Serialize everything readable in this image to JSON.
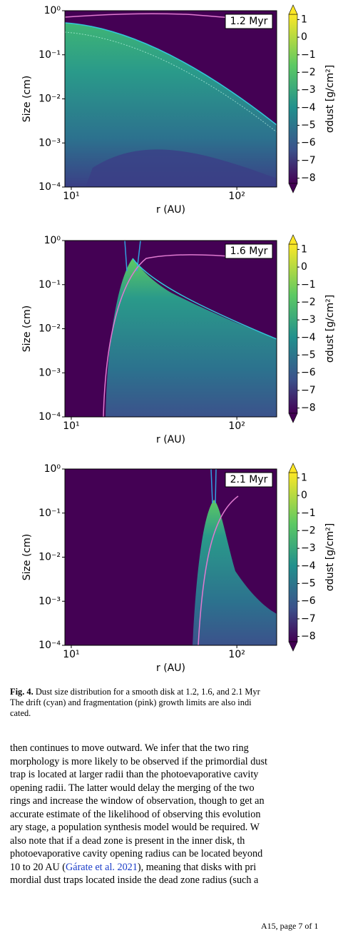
{
  "chart_data": [
    {
      "type": "heatmap",
      "annotation": "1.2 Myr",
      "xlabel": "r (AU)",
      "ylabel": "Size (cm)",
      "log_x": true,
      "log_y": true,
      "xlim": [
        9.15,
        174
      ],
      "xticks": [
        {
          "value": 10,
          "label": "10¹"
        },
        {
          "value": 100,
          "label": "10²"
        }
      ],
      "ylim": [
        0.0001,
        1
      ],
      "yticks": [
        {
          "value": 0.0001,
          "label": "10⁻⁴"
        },
        {
          "value": 0.001,
          "label": "10⁻³"
        },
        {
          "value": 0.01,
          "label": "10⁻²"
        },
        {
          "value": 0.1,
          "label": "10⁻¹"
        },
        {
          "value": 1,
          "label": "10⁰"
        }
      ],
      "colorbar_label": "σdust [g/cm²]",
      "clim": [
        -8.3,
        1.3
      ],
      "cticks": [
        1,
        0,
        {
          "value": -1,
          "label": "−1"
        },
        {
          "value": -2,
          "label": "−2"
        },
        {
          "value": -3,
          "label": "−3"
        },
        {
          "value": -4,
          "label": "−4"
        },
        {
          "value": -5,
          "label": "−5"
        },
        {
          "value": -6,
          "label": "−6"
        },
        {
          "value": -7,
          "label": "−7"
        },
        {
          "value": -8,
          "label": "−8"
        }
      ]
    },
    {
      "type": "heatmap",
      "annotation": "1.6 Myr",
      "xlabel": "r (AU)",
      "ylabel": "Size (cm)",
      "log_x": true,
      "log_y": true,
      "xlim": [
        9.15,
        174
      ],
      "xticks": [
        {
          "value": 10,
          "label": "10¹"
        },
        {
          "value": 100,
          "label": "10²"
        }
      ],
      "ylim": [
        0.0001,
        1
      ],
      "yticks": [
        {
          "value": 0.0001,
          "label": "10⁻⁴"
        },
        {
          "value": 0.001,
          "label": "10⁻³"
        },
        {
          "value": 0.01,
          "label": "10⁻²"
        },
        {
          "value": 0.1,
          "label": "10⁻¹"
        },
        {
          "value": 1,
          "label": "10⁰"
        }
      ],
      "colorbar_label": "σdust [g/cm²]",
      "clim": [
        -8.3,
        1.3
      ],
      "cticks": [
        1,
        0,
        {
          "value": -1,
          "label": "−1"
        },
        {
          "value": -2,
          "label": "−2"
        },
        {
          "value": -3,
          "label": "−3"
        },
        {
          "value": -4,
          "label": "−4"
        },
        {
          "value": -5,
          "label": "−5"
        },
        {
          "value": -6,
          "label": "−6"
        },
        {
          "value": -7,
          "label": "−7"
        },
        {
          "value": -8,
          "label": "−8"
        }
      ]
    },
    {
      "type": "heatmap",
      "annotation": "2.1 Myr",
      "xlabel": "r (AU)",
      "ylabel": "Size (cm)",
      "log_x": true,
      "log_y": true,
      "xlim": [
        9.15,
        174
      ],
      "xticks": [
        {
          "value": 10,
          "label": "10¹"
        },
        {
          "value": 100,
          "label": "10²"
        }
      ],
      "ylim": [
        0.0001,
        1
      ],
      "yticks": [
        {
          "value": 0.0001,
          "label": "10⁻⁴"
        },
        {
          "value": 0.001,
          "label": "10⁻³"
        },
        {
          "value": 0.01,
          "label": "10⁻²"
        },
        {
          "value": 0.1,
          "label": "10⁻¹"
        },
        {
          "value": 1,
          "label": "10⁰"
        }
      ],
      "colorbar_label": "σdust [g/cm²]",
      "clim": [
        -8.3,
        1.3
      ],
      "cticks": [
        1,
        0,
        {
          "value": -1,
          "label": "−1"
        },
        {
          "value": -2,
          "label": "−2"
        },
        {
          "value": -3,
          "label": "−3"
        },
        {
          "value": -4,
          "label": "−4"
        },
        {
          "value": -5,
          "label": "−5"
        },
        {
          "value": -6,
          "label": "−6"
        },
        {
          "value": -7,
          "label": "−7"
        },
        {
          "value": -8,
          "label": "−8"
        }
      ]
    }
  ],
  "caption": {
    "label": "Fig. 4.",
    "lines": [
      "Dust size distribution for a smooth disk at 1.2, 1.6, and 2.1 Myr",
      "The drift (cyan) and fragmentation (pink) growth limits are also indi",
      "cated."
    ]
  },
  "body": {
    "lines": [
      "then continues to move outward. We infer that the two ring",
      "morphology is more likely to be observed if the primordial dust",
      "trap is located at larger radii than the photoevaporative cavity",
      "opening radii. The latter would delay the merging of the two",
      "rings and increase the window of observation, though to get an",
      "accurate estimate of the likelihood of observing this evolution",
      "ary stage, a population synthesis model would be required. W",
      "also note that if a dead zone is present in the inner disk, th"
    ],
    "line9": "photoevaporative cavity opening radius can be located beyond",
    "line10_pre": "10 to 20 AU (",
    "line10_cite": "Gárate et al. 2021",
    "line10_post": "), meaning that disks with pri",
    "line11": "mordial dust traps located inside the dead zone radius (such a"
  },
  "footer": "A15, page 7 of 1"
}
